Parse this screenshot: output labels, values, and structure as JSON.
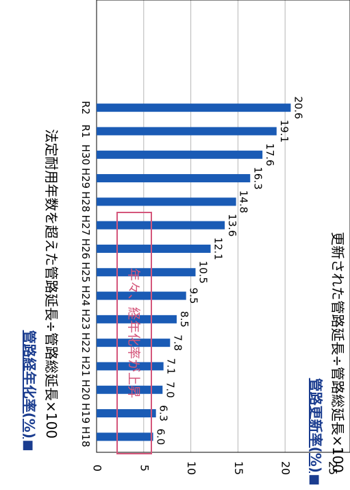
{
  "header": {
    "bullet": "■",
    "title": "管路経年化率(%)",
    "formula": "法定耐用年数を超えた管路延長÷管路総延長×100"
  },
  "footer": {
    "bullet": "■",
    "title": "管路更新率(%)",
    "formula": "更新された管路延長÷管路総延長×100"
  },
  "annotation": {
    "text": "年々、経年化率が上昇",
    "color": "#d4557a"
  },
  "colors": {
    "bar": "#1a5bb5",
    "accent": "#1a3c8f",
    "grid": "#b5b5b5",
    "axis": "#000000"
  },
  "chart_data": {
    "type": "bar",
    "orientation": "rotated-90-clockwise",
    "categories": [
      "H18",
      "H19",
      "H20",
      "H21",
      "H22",
      "H23",
      "H24",
      "H25",
      "H26",
      "H27",
      "H28",
      "H29",
      "H30",
      "R1",
      "R2"
    ],
    "values": [
      6.0,
      6.3,
      7.0,
      7.1,
      7.8,
      8.5,
      9.5,
      10.5,
      12.1,
      13.6,
      14.8,
      16.3,
      17.6,
      19.1,
      20.6
    ],
    "value_labels": [
      "6.0",
      "6.3",
      "7.0",
      "7.1",
      "7.8",
      "8.5",
      "9.5",
      "10.5",
      "12.1",
      "13.6",
      "14.8",
      "16.3",
      "17.6",
      "19.1",
      "20.6"
    ],
    "ylim": [
      0,
      25
    ],
    "yticks": [
      0,
      5,
      10,
      15,
      20,
      25
    ],
    "grid": true
  }
}
